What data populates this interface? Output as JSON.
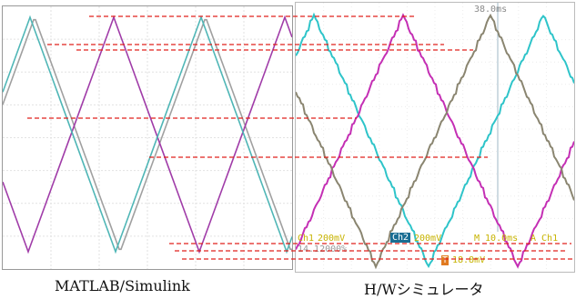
{
  "captions": {
    "left": "MATLAB/Simulink",
    "right": "H/Wシミュレータ"
  },
  "scope": {
    "time_readout": "38.0ms",
    "ch1_label": "Ch1",
    "ch1_scale": "200mV",
    "ch2_label": "Ch2",
    "ch2_scale": "200mV",
    "timebase": "M 10.0ms",
    "trigger": "A  Ch1",
    "extra_readout": "14.12000%",
    "marker": "T",
    "marker_value": "18.8mV"
  },
  "colors": {
    "sim_phase_a": "#a0a0a0",
    "sim_phase_b": "#a03ca8",
    "sim_phase_c": "#4fb6b6",
    "scope_magenta": "#c42fb4",
    "scope_cyan": "#2ec4c9",
    "scope_olive": "#8a8570",
    "reference_line": "#e0201c",
    "scope_text": "#c7b300"
  }
}
